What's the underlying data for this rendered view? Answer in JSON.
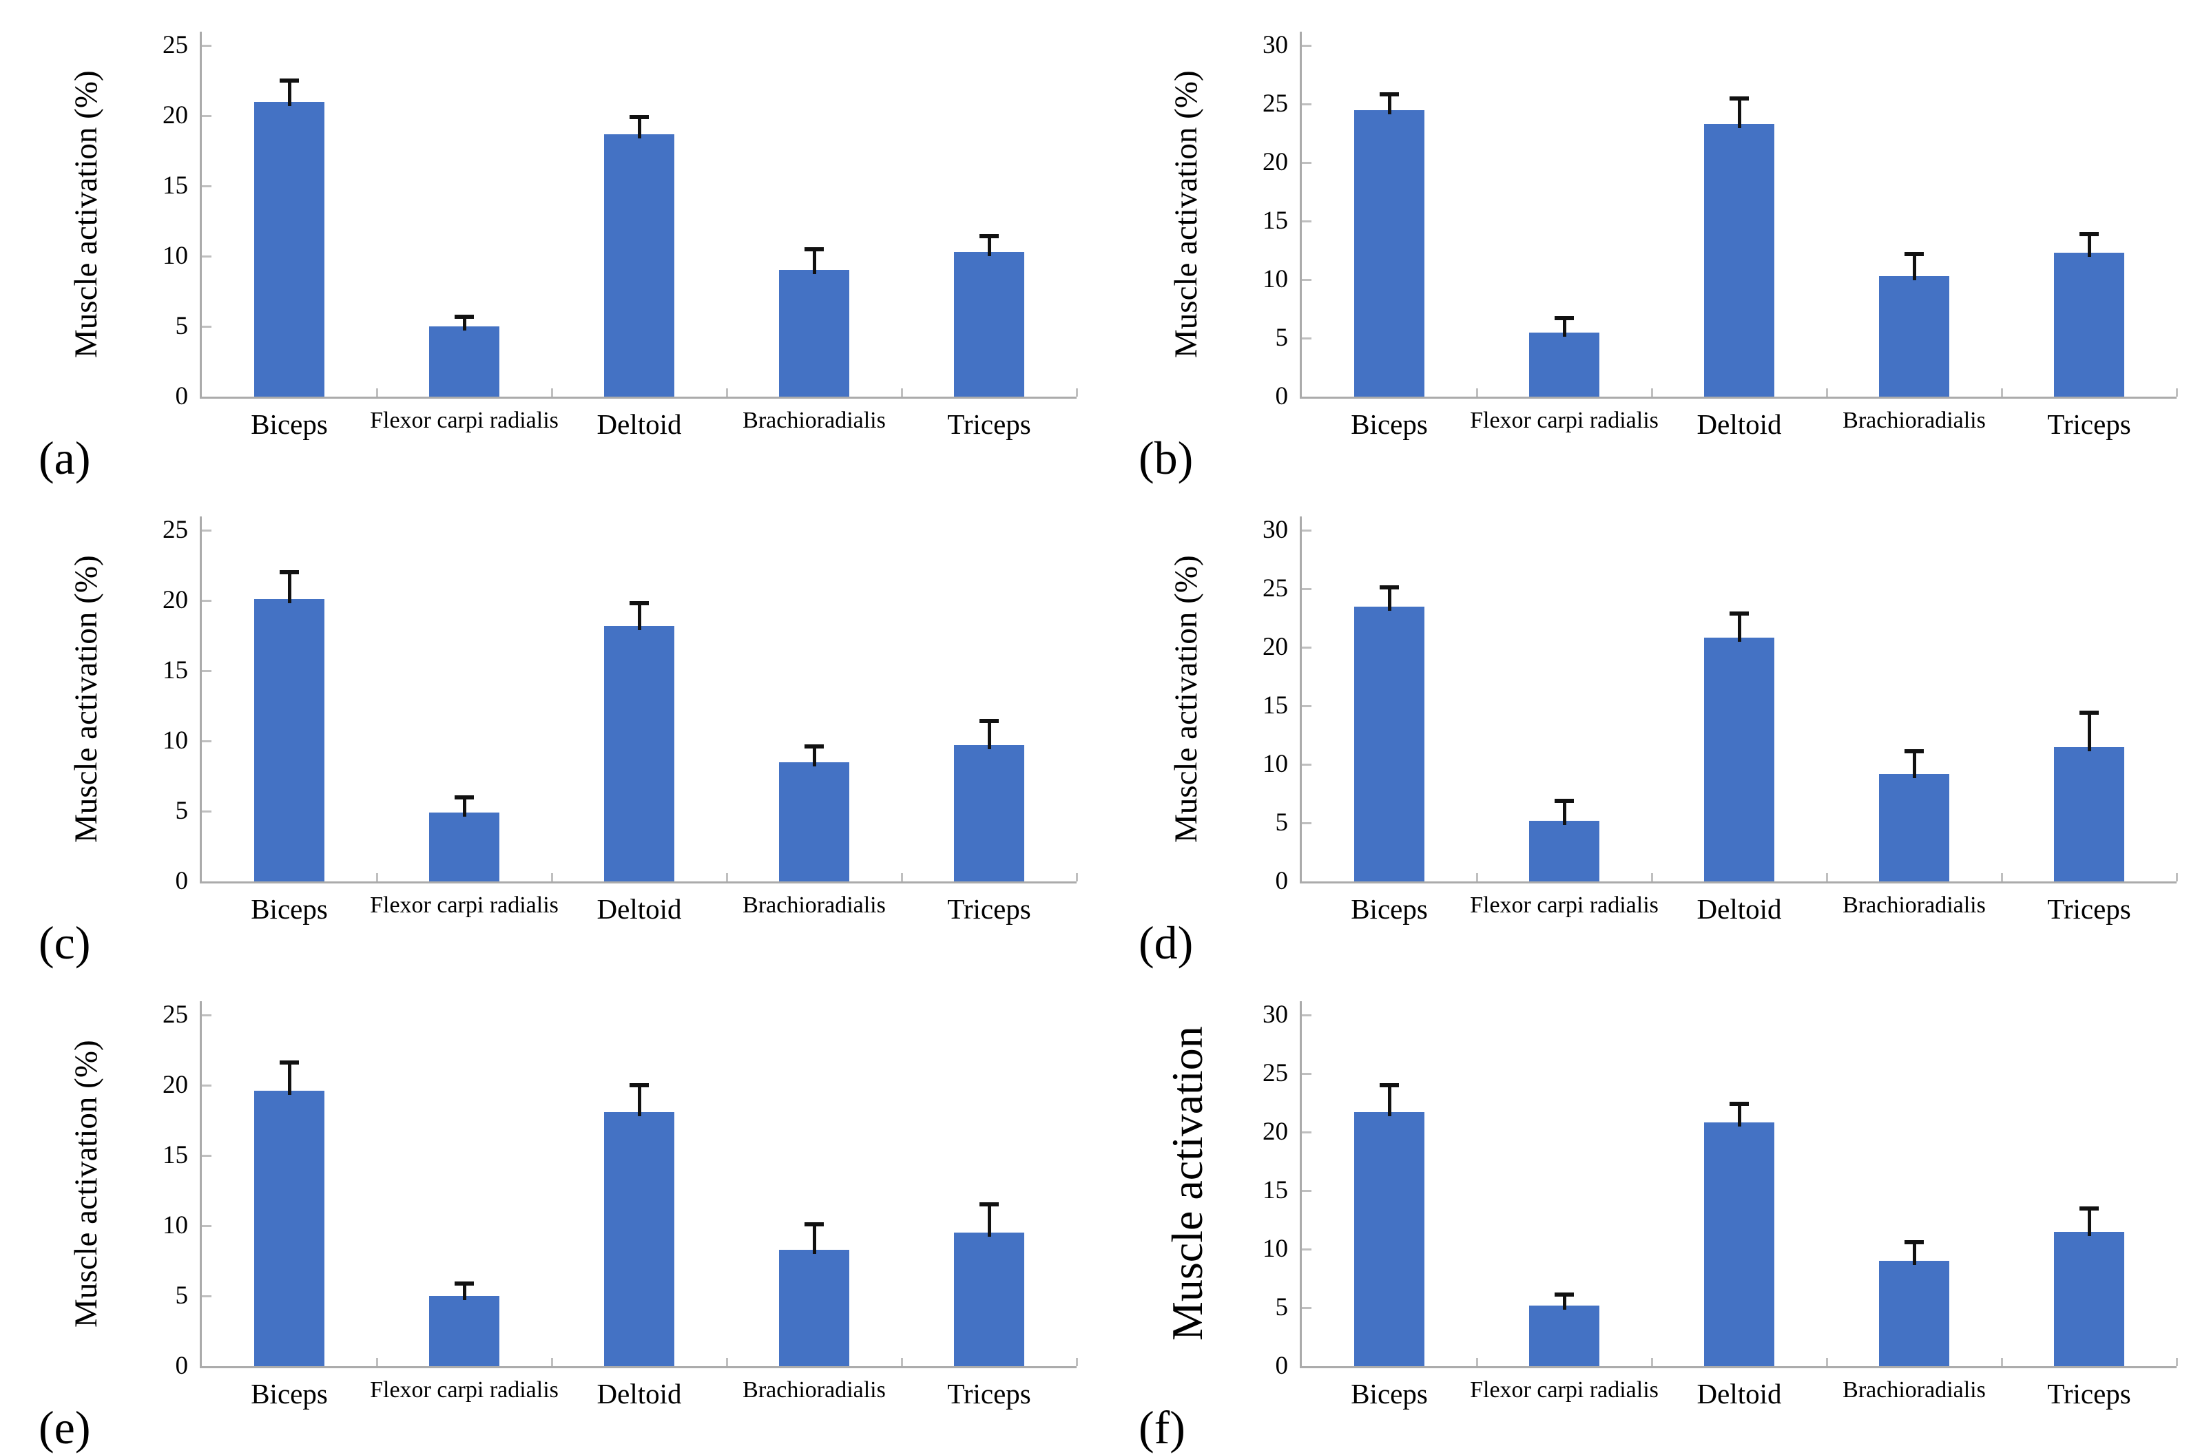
{
  "colors": {
    "bar": "#4472C4",
    "error_bar": "#111111",
    "axis": "#ababab",
    "tick_mark": "#bfbfbf",
    "text": "#000000",
    "background": "#ffffff"
  },
  "chart_data": [
    {
      "type": "bar",
      "panel_label": "(a)",
      "ylabel": "Muscle activation (%)",
      "xlabel": "",
      "ylim": [
        0,
        25
      ],
      "ytick_step": 5,
      "grid": false,
      "legend": "none",
      "categories": [
        "Biceps",
        "Flexor carpi radialis",
        "Deltoid",
        "Brachioradialis",
        "Triceps"
      ],
      "values": [
        21.0,
        5.0,
        18.7,
        9.0,
        10.3
      ],
      "errors": [
        1.5,
        0.7,
        1.2,
        1.5,
        1.1
      ]
    },
    {
      "type": "bar",
      "panel_label": "(b)",
      "ylabel": "Muscle activation (%)",
      "xlabel": "",
      "ylim": [
        0,
        30
      ],
      "ytick_step": 5,
      "grid": false,
      "legend": "none",
      "categories": [
        "Biceps",
        "Flexor carpi radialis",
        "Deltoid",
        "Brachioradialis",
        "Triceps"
      ],
      "values": [
        24.5,
        5.5,
        23.3,
        10.3,
        12.3
      ],
      "errors": [
        1.3,
        1.2,
        2.2,
        1.9,
        1.6
      ]
    },
    {
      "type": "bar",
      "panel_label": "(c)",
      "ylabel": "Muscle activation (%)",
      "xlabel": "",
      "ylim": [
        0,
        25
      ],
      "ytick_step": 5,
      "grid": false,
      "legend": "none",
      "categories": [
        "Biceps",
        "Flexor carpi radialis",
        "Deltoid",
        "Brachioradialis",
        "Triceps"
      ],
      "values": [
        20.1,
        4.9,
        18.2,
        8.5,
        9.7
      ],
      "errors": [
        1.9,
        1.1,
        1.6,
        1.1,
        1.7
      ]
    },
    {
      "type": "bar",
      "panel_label": "(d)",
      "ylabel": "Muscle activation (%)",
      "xlabel": "",
      "ylim": [
        0,
        30
      ],
      "ytick_step": 5,
      "grid": false,
      "legend": "none",
      "categories": [
        "Biceps",
        "Flexor carpi radialis",
        "Deltoid",
        "Brachioradialis",
        "Triceps"
      ],
      "values": [
        23.5,
        5.2,
        20.8,
        9.2,
        11.5
      ],
      "errors": [
        1.6,
        1.7,
        2.1,
        1.9,
        2.9
      ]
    },
    {
      "type": "bar",
      "panel_label": "(e)",
      "ylabel": "Muscle activation (%)",
      "xlabel": "",
      "ylim": [
        0,
        25
      ],
      "ytick_step": 5,
      "grid": false,
      "legend": "none",
      "categories": [
        "Biceps",
        "Flexor carpi radialis",
        "Deltoid",
        "Brachioradialis",
        "Triceps"
      ],
      "values": [
        19.6,
        5.0,
        18.1,
        8.3,
        9.5
      ],
      "errors": [
        2.0,
        0.9,
        1.9,
        1.8,
        2.0
      ]
    },
    {
      "type": "bar",
      "panel_label": "(f)",
      "ylabel": "Muscle activation",
      "xlabel": "",
      "ylim": [
        0,
        30
      ],
      "ytick_step": 5,
      "grid": false,
      "legend": "none",
      "categories": [
        "Biceps",
        "Flexor carpi radialis",
        "Deltoid",
        "Brachioradialis",
        "Triceps"
      ],
      "values": [
        21.7,
        5.2,
        20.8,
        9.0,
        11.5
      ],
      "errors": [
        2.3,
        0.9,
        1.6,
        1.6,
        2.0
      ]
    }
  ]
}
